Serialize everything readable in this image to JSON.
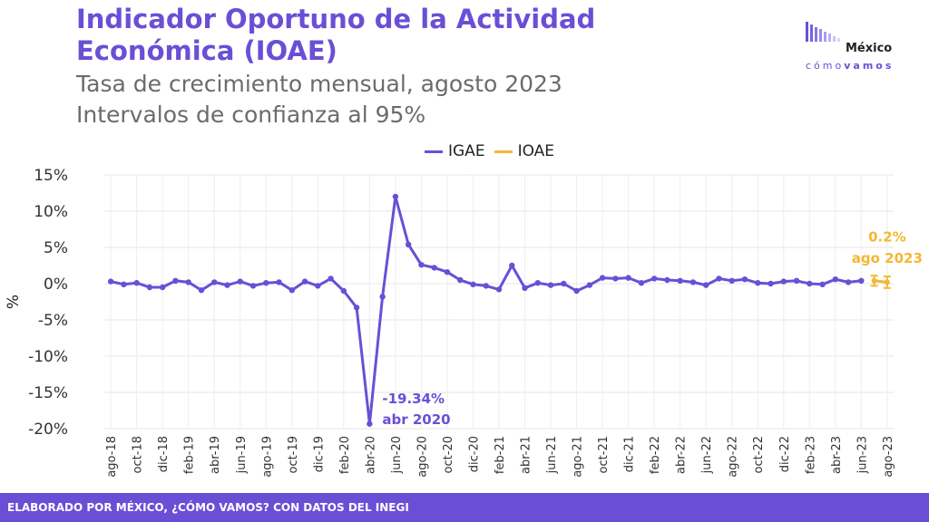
{
  "header": {
    "title": "Indicador Oportuno de la Actividad Económica (IOAE)",
    "subtitle_1": "Tasa de crecimiento mensual, agosto 2023",
    "subtitle_2": "Intervalos de confianza al 95%"
  },
  "logo": {
    "name": "México",
    "tagline_a": "cómo",
    "tagline_b": "vamos"
  },
  "footer": {
    "text": "ELABORADO POR MÉXICO, ¿CÓMO VAMOS? CON DATOS DEL INEGI"
  },
  "colors": {
    "igae": "#6a4fd6",
    "ioae": "#f5b731",
    "brand": "#6a4fd6"
  },
  "chart_data": {
    "type": "line",
    "ylabel": "%",
    "ylim": [
      -20,
      15
    ],
    "yticks": [
      15,
      10,
      5,
      0,
      -5,
      -10,
      -15,
      -20
    ],
    "ytick_labels": [
      "15%",
      "10%",
      "5%",
      "0%",
      "-5%",
      "-10%",
      "-15%",
      "-20%"
    ],
    "grid": true,
    "legend_position": "top",
    "x": [
      "ago-18",
      "sep-18",
      "oct-18",
      "nov-18",
      "dic-18",
      "ene-19",
      "feb-19",
      "mar-19",
      "abr-19",
      "may-19",
      "jun-19",
      "jul-19",
      "ago-19",
      "sep-19",
      "oct-19",
      "nov-19",
      "dic-19",
      "ene-20",
      "feb-20",
      "mar-20",
      "abr-20",
      "may-20",
      "jun-20",
      "jul-20",
      "ago-20",
      "sep-20",
      "oct-20",
      "nov-20",
      "dic-20",
      "ene-21",
      "feb-21",
      "mar-21",
      "abr-21",
      "may-21",
      "jun-21",
      "jul-21",
      "ago-21",
      "sep-21",
      "oct-21",
      "nov-21",
      "dic-21",
      "ene-22",
      "feb-22",
      "mar-22",
      "abr-22",
      "may-22",
      "jun-22",
      "jul-22",
      "ago-22",
      "sep-22",
      "oct-22",
      "nov-22",
      "dic-22",
      "ene-23",
      "feb-23",
      "mar-23",
      "abr-23",
      "may-23",
      "jun-23",
      "jul-23",
      "ago-23"
    ],
    "xtick_labels": [
      "ago-18",
      "oct-18",
      "dic-18",
      "feb-19",
      "abr-19",
      "jun-19",
      "ago-19",
      "oct-19",
      "dic-19",
      "feb-20",
      "abr-20",
      "jun-20",
      "ago-20",
      "oct-20",
      "dic-20",
      "feb-21",
      "abr-21",
      "jun-21",
      "ago-21",
      "oct-21",
      "dic-21",
      "feb-22",
      "abr-22",
      "jun-22",
      "ago-22",
      "oct-22",
      "dic-22",
      "feb-23",
      "abr-23",
      "jun-23",
      "ago-23"
    ],
    "series": [
      {
        "name": "IGAE",
        "color": "#6a4fd6",
        "values": [
          0.3,
          -0.1,
          0.1,
          -0.5,
          -0.5,
          0.4,
          0.2,
          -0.9,
          0.2,
          -0.2,
          0.3,
          -0.3,
          0.1,
          0.2,
          -0.9,
          0.3,
          -0.3,
          0.7,
          -1.0,
          -3.3,
          -19.34,
          -1.8,
          12.0,
          5.4,
          2.6,
          2.2,
          1.6,
          0.5,
          -0.1,
          -0.3,
          -0.8,
          2.5,
          -0.6,
          0.1,
          -0.2,
          0.0,
          -1.0,
          -0.2,
          0.8,
          0.7,
          0.8,
          0.1,
          0.7,
          0.5,
          0.4,
          0.2,
          -0.2,
          0.7,
          0.4,
          0.6,
          0.1,
          0.0,
          0.3,
          0.4,
          0.0,
          -0.1,
          0.6,
          0.2,
          0.4,
          null,
          null
        ]
      },
      {
        "name": "IOAE",
        "color": "#f5b731",
        "points": [
          {
            "x": "jul-23",
            "value": 0.4,
            "lower": -0.3,
            "upper": 1.1
          },
          {
            "x": "ago-23",
            "value": 0.2,
            "lower": -0.6,
            "upper": 1.0
          }
        ]
      }
    ],
    "annotations": [
      {
        "x": "abr-20",
        "line1": "-19.34%",
        "line2": "abr 2020",
        "color": "#6a4fd6"
      },
      {
        "x": "ago-23",
        "line1": "0.2%",
        "line2": "ago 2023",
        "color": "#f5b731"
      }
    ]
  }
}
